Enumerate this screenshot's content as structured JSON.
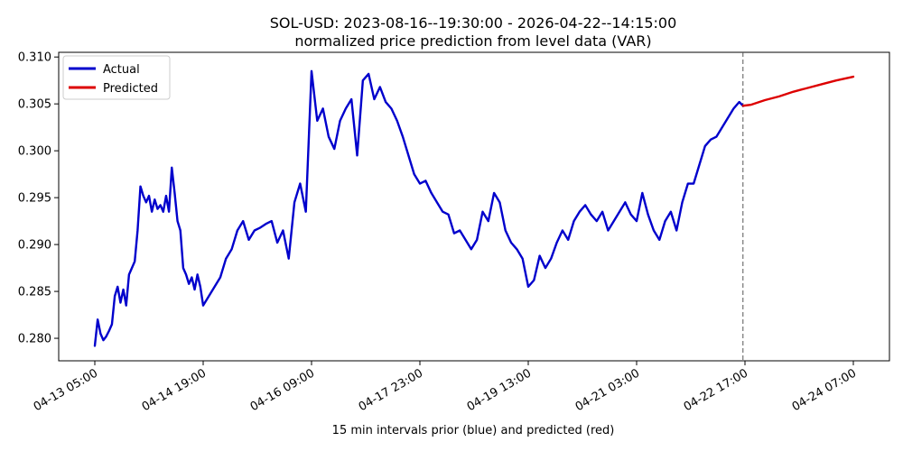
{
  "chart_data": {
    "type": "line",
    "title": "SOL-USD: 2023-08-16--19:30:00 - 2026-04-22--14:15:00",
    "subtitle": "normalized price prediction from level data (VAR)",
    "xlabel": "15 min intervals prior (blue) and predicted (red)",
    "ylabel": "",
    "x_tick_labels": [
      "04-13 05:00",
      "04-14 19:00",
      "04-16 09:00",
      "04-17 23:00",
      "04-19 13:00",
      "04-21 03:00",
      "04-22 17:00",
      "04-24 07:00"
    ],
    "x_tick_hours": [
      0,
      38,
      76,
      114,
      152,
      190,
      228,
      266
    ],
    "ylim": [
      0.2776,
      0.3105
    ],
    "y_ticks": [
      0.28,
      0.285,
      0.29,
      0.295,
      0.3,
      0.305,
      0.31
    ],
    "y_tick_labels": [
      "0.280",
      "0.285",
      "0.290",
      "0.295",
      "0.300",
      "0.305",
      "0.310"
    ],
    "divider_hour": 227.3,
    "grid": false,
    "legend_position": "top-left",
    "series": [
      {
        "name": "Actual",
        "color": "#0000cc",
        "x_hours": [
          0,
          1,
          2,
          3,
          4,
          5,
          6,
          7,
          8,
          9,
          10,
          11,
          12,
          13,
          14,
          15,
          16,
          17,
          18,
          19,
          20,
          21,
          22,
          23,
          24,
          25,
          26,
          27,
          28,
          29,
          30,
          31,
          32,
          33,
          34,
          35,
          36,
          37,
          38,
          40,
          42,
          44,
          46,
          48,
          50,
          52,
          54,
          56,
          58,
          60,
          62,
          64,
          66,
          68,
          70,
          72,
          74,
          76,
          78,
          80,
          82,
          84,
          86,
          88,
          90,
          92,
          94,
          96,
          98,
          100,
          102,
          104,
          106,
          108,
          110,
          112,
          114,
          116,
          118,
          120,
          122,
          124,
          126,
          128,
          130,
          132,
          134,
          136,
          138,
          140,
          142,
          144,
          146,
          148,
          150,
          152,
          154,
          156,
          158,
          160,
          162,
          164,
          166,
          168,
          170,
          172,
          174,
          176,
          178,
          180,
          182,
          184,
          186,
          188,
          190,
          192,
          194,
          196,
          198,
          200,
          202,
          204,
          206,
          208,
          210,
          212,
          214,
          216,
          218,
          220,
          222,
          224,
          226,
          227.3
        ],
        "values": [
          0.2792,
          0.282,
          0.2805,
          0.2798,
          0.2802,
          0.2808,
          0.2815,
          0.2845,
          0.2855,
          0.2838,
          0.2852,
          0.2835,
          0.2868,
          0.2875,
          0.2882,
          0.2915,
          0.2962,
          0.2952,
          0.2945,
          0.2952,
          0.2935,
          0.2948,
          0.2938,
          0.2942,
          0.2935,
          0.2952,
          0.2935,
          0.2982,
          0.2955,
          0.2925,
          0.2915,
          0.2875,
          0.2868,
          0.2858,
          0.2865,
          0.2852,
          0.2868,
          0.2855,
          0.2835,
          0.2845,
          0.2855,
          0.2865,
          0.2885,
          0.2895,
          0.2915,
          0.2925,
          0.2905,
          0.2915,
          0.2918,
          0.2922,
          0.2925,
          0.2902,
          0.2915,
          0.2885,
          0.2945,
          0.2965,
          0.2935,
          0.3085,
          0.3032,
          0.3045,
          0.3015,
          0.3002,
          0.3032,
          0.3045,
          0.3055,
          0.2995,
          0.3075,
          0.3082,
          0.3055,
          0.3068,
          0.3052,
          0.3045,
          0.3032,
          0.3015,
          0.2995,
          0.2975,
          0.2965,
          0.2968,
          0.2955,
          0.2945,
          0.2935,
          0.2932,
          0.2912,
          0.2915,
          0.2905,
          0.2895,
          0.2905,
          0.2935,
          0.2925,
          0.2955,
          0.2945,
          0.2915,
          0.2902,
          0.2895,
          0.2885,
          0.2855,
          0.2862,
          0.2888,
          0.2875,
          0.2885,
          0.2902,
          0.2915,
          0.2905,
          0.2925,
          0.2935,
          0.2942,
          0.2932,
          0.2925,
          0.2935,
          0.2915,
          0.2925,
          0.2935,
          0.2945,
          0.2932,
          0.2925,
          0.2955,
          0.2932,
          0.2915,
          0.2905,
          0.2925,
          0.2935,
          0.2915,
          0.2945,
          0.2965,
          0.2965,
          0.2985,
          0.3005,
          0.3012,
          0.3015,
          0.3025,
          0.3035,
          0.3045,
          0.3052,
          0.3048
        ]
      },
      {
        "name": "Predicted",
        "color": "#dd0000",
        "x_hours": [
          227.3,
          230,
          235,
          240,
          245,
          250,
          255,
          260,
          266
        ],
        "values": [
          0.3048,
          0.3049,
          0.3054,
          0.3058,
          0.3063,
          0.3067,
          0.3071,
          0.3075,
          0.3079
        ]
      }
    ]
  }
}
